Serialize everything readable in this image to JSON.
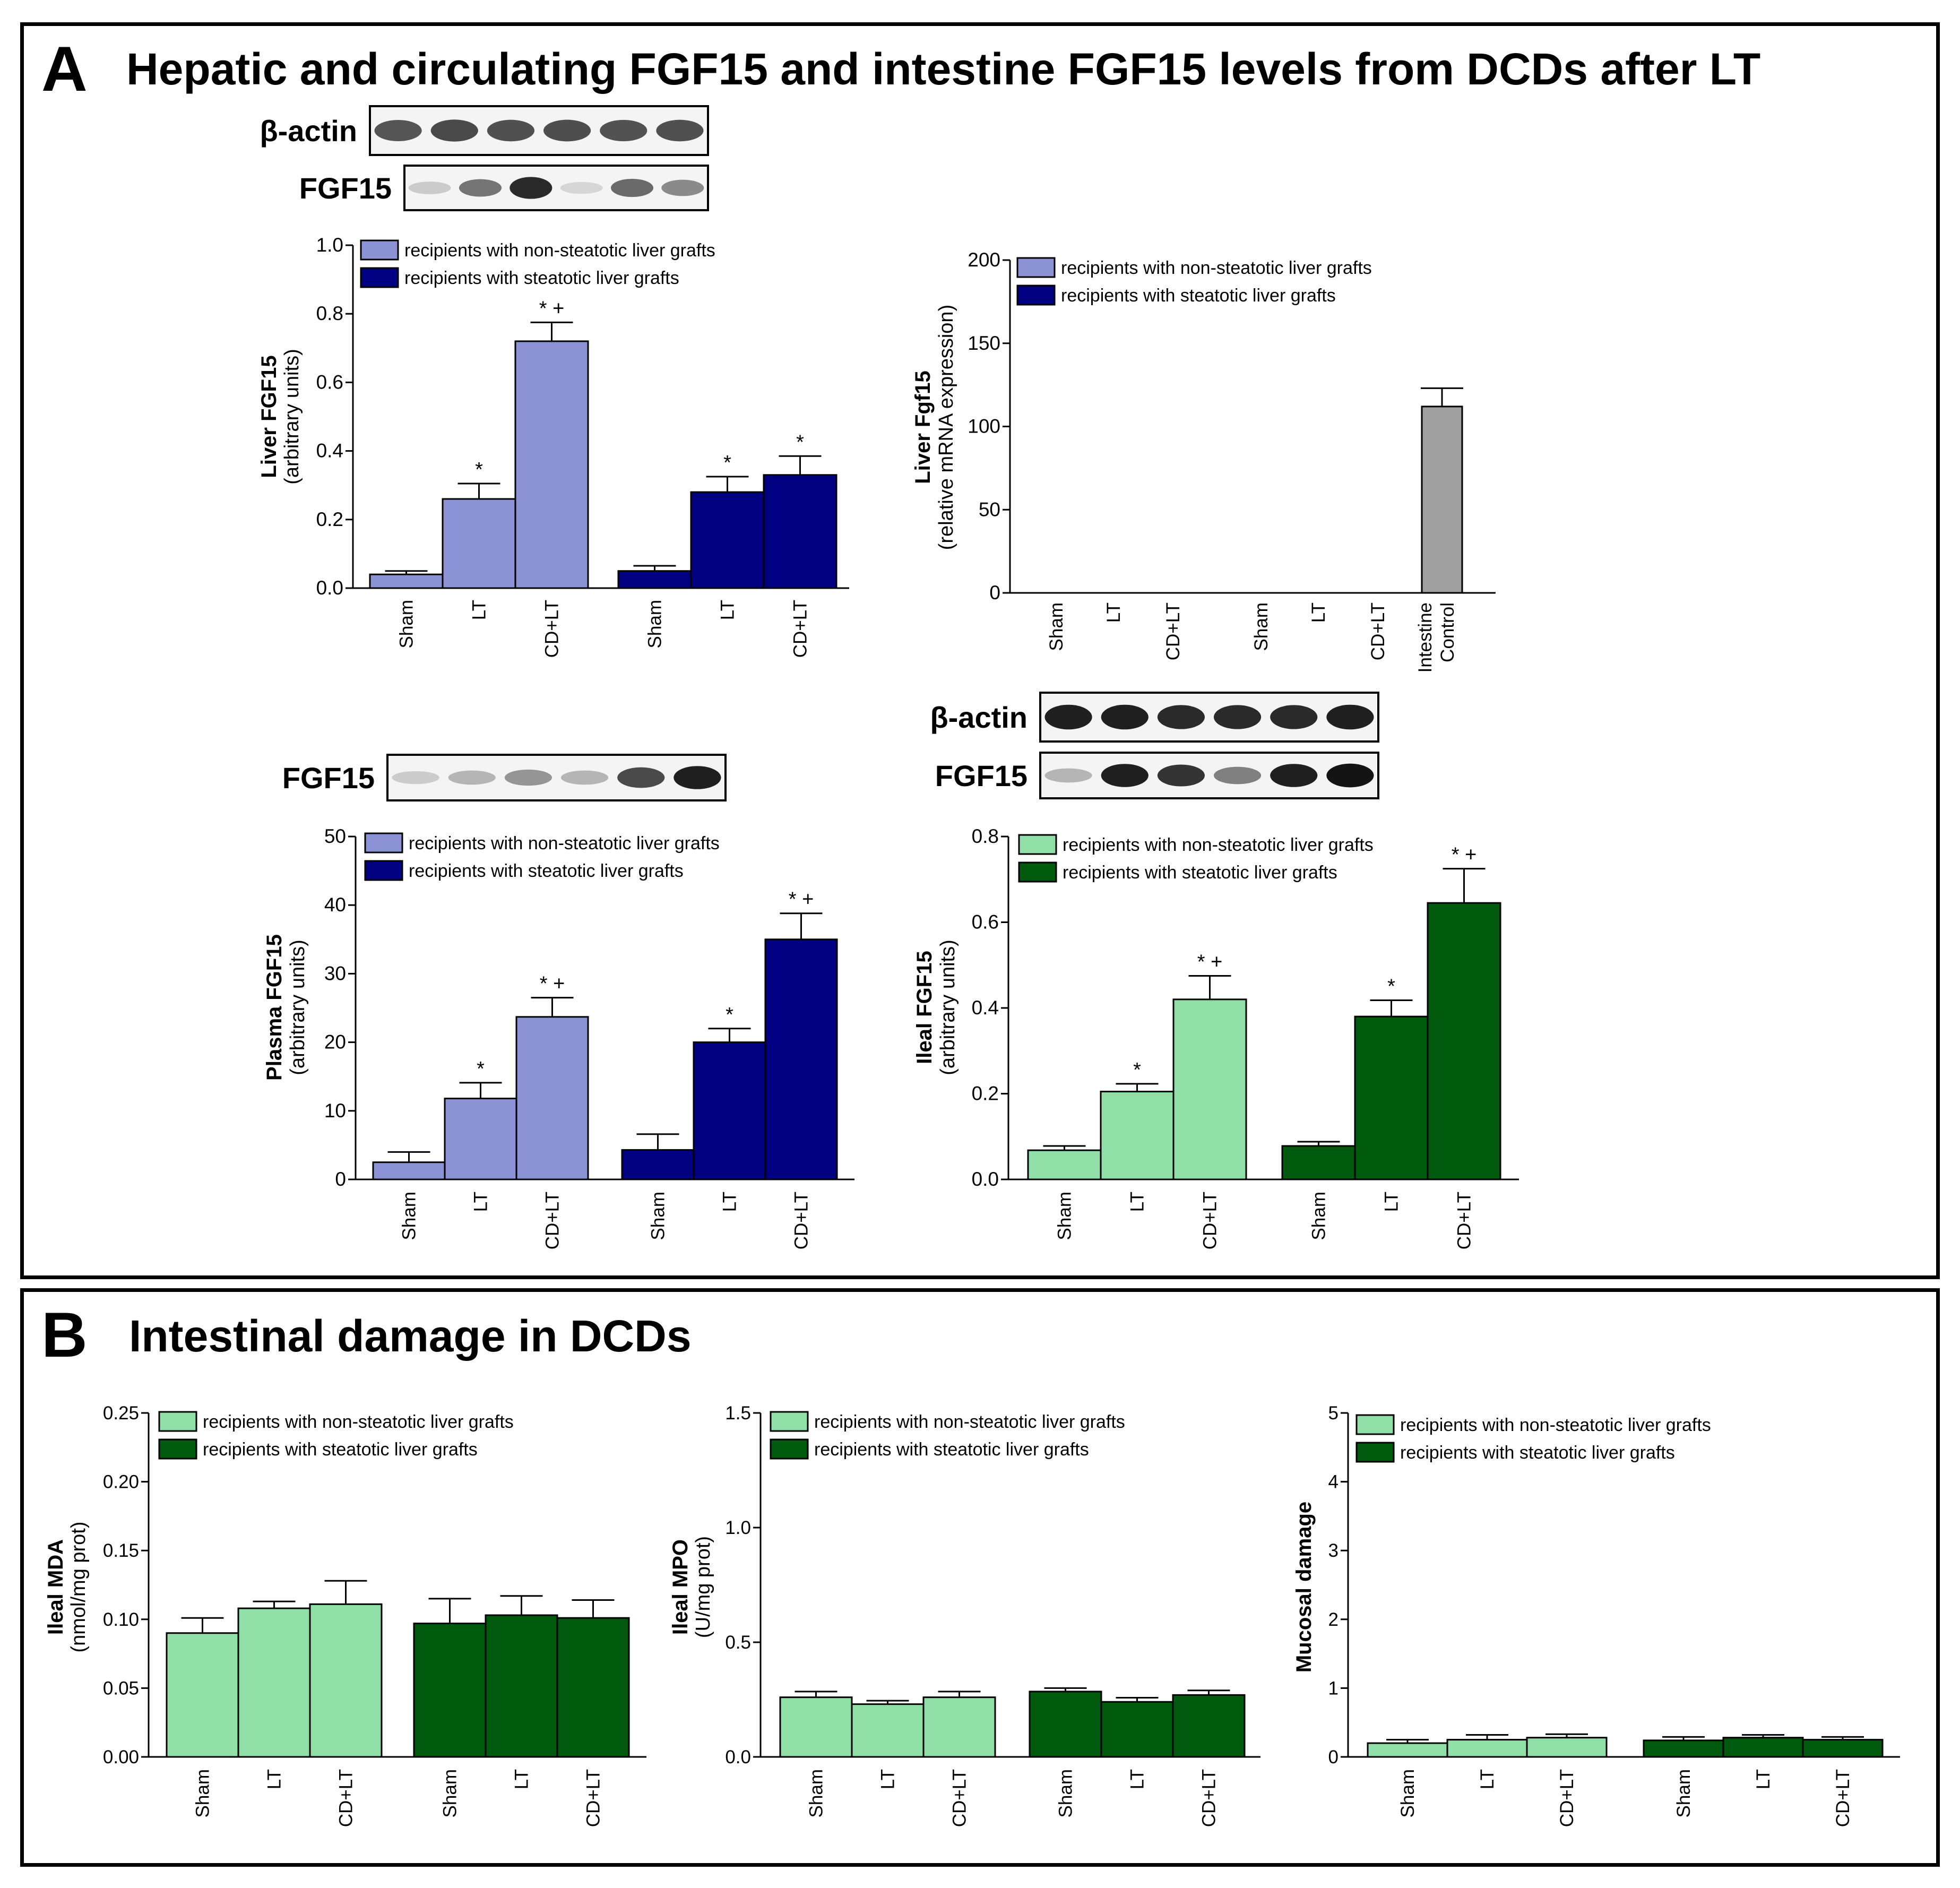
{
  "panel_a": {
    "label": "A",
    "title": "Hepatic and circulating FGF15 and intestine FGF15 levels from DCDs after LT"
  },
  "panel_b": {
    "label": "B",
    "title": "Intestinal damage in DCDs"
  },
  "blots": [
    {
      "id": "liver",
      "rows": [
        {
          "label": "β-actin"
        },
        {
          "label": "FGF15"
        }
      ]
    },
    {
      "id": "plasma",
      "rows": [
        {
          "label": "FGF15"
        }
      ]
    },
    {
      "id": "ileal",
      "rows": [
        {
          "label": "β-actin"
        },
        {
          "label": "FGF15"
        }
      ]
    }
  ],
  "colors": {
    "light_blue": "#8b93d4",
    "dark_blue": "#000080",
    "light_green": "#90dfa6",
    "dark_green": "#005a0e",
    "gray": "#a0a0a0"
  },
  "chart_data": [
    {
      "id": "liver-fgf15",
      "type": "bar",
      "ylabel_main": "Liver FGF15",
      "ylabel_sub": "(arbitrary units)",
      "ylim": [
        0,
        1.0
      ],
      "ticks": [
        "0.0",
        "0.2",
        "0.4",
        "0.6",
        "0.8",
        "1.0"
      ],
      "legend": [
        "recipients with non-steatotic liver grafts",
        "recipients with steatotic liver grafts"
      ],
      "categories": [
        "Sham",
        "LT",
        "CD+LT",
        "Sham",
        "LT",
        "CD+LT"
      ],
      "values": [
        0.04,
        0.26,
        0.72,
        0.05,
        0.28,
        0.33
      ],
      "errors": [
        0.01,
        0.045,
        0.055,
        0.015,
        0.045,
        0.055
      ],
      "marks": [
        "",
        "*",
        "* +",
        "",
        "*",
        "*"
      ]
    },
    {
      "id": "liver-fgf15-mrna",
      "type": "bar",
      "ylabel_main": "Liver Fgf15",
      "ylabel_sub": "(relative mRNA expression)",
      "ylim": [
        0,
        200
      ],
      "ticks": [
        "0",
        "50",
        "100",
        "150",
        "200"
      ],
      "legend": [
        "recipients with non-steatotic liver grafts",
        "recipients with steatotic liver grafts"
      ],
      "categories": [
        "Sham",
        "LT",
        "CD+LT",
        "Sham",
        "LT",
        "CD+LT",
        "Intestine Control"
      ],
      "values": [
        0,
        0,
        0,
        0,
        0,
        0,
        112
      ],
      "errors": [
        0,
        0,
        0,
        0,
        0,
        0,
        11
      ],
      "marks": [
        "",
        "",
        "",
        "",
        "",
        "",
        ""
      ]
    },
    {
      "id": "plasma-fgf15",
      "type": "bar",
      "ylabel_main": "Plasma FGF15",
      "ylabel_sub": "(arbitrary units)",
      "ylim": [
        0,
        50
      ],
      "ticks": [
        "0",
        "10",
        "20",
        "30",
        "40",
        "50"
      ],
      "legend": [
        "recipients with non-steatotic liver grafts",
        "recipients with steatotic liver grafts"
      ],
      "categories": [
        "Sham",
        "LT",
        "CD+LT",
        "Sham",
        "LT",
        "CD+LT"
      ],
      "values": [
        2.5,
        11.8,
        23.7,
        4.3,
        20.0,
        35.0
      ],
      "errors": [
        1.5,
        2.3,
        2.8,
        2.3,
        2.0,
        3.8
      ],
      "marks": [
        "",
        "*",
        "* +",
        "",
        "*",
        "* +"
      ]
    },
    {
      "id": "ileal-fgf15",
      "type": "bar",
      "ylabel_main": "Ileal FGF15",
      "ylabel_sub": "(arbitrary units)",
      "ylim": [
        0,
        0.8
      ],
      "ticks": [
        "0.0",
        "0.2",
        "0.4",
        "0.6",
        "0.8"
      ],
      "legend": [
        "recipients with non-steatotic liver grafts",
        "recipients with steatotic liver grafts"
      ],
      "categories": [
        "Sham",
        "LT",
        "CD+LT",
        "Sham",
        "LT",
        "CD+LT"
      ],
      "values": [
        0.068,
        0.205,
        0.42,
        0.078,
        0.38,
        0.645
      ],
      "errors": [
        0.01,
        0.018,
        0.055,
        0.01,
        0.038,
        0.08
      ],
      "marks": [
        "",
        "*",
        "* +",
        "",
        "*",
        "* +"
      ]
    },
    {
      "id": "ileal-mda",
      "type": "bar",
      "ylabel_main": "Ileal MDA",
      "ylabel_sub": "(nmol/mg prot)",
      "ylim": [
        0,
        0.25
      ],
      "ticks": [
        "0.00",
        "0.05",
        "0.10",
        "0.15",
        "0.20",
        "0.25"
      ],
      "legend": [
        "recipients with non-steatotic liver grafts",
        "recipients with steatotic liver grafts"
      ],
      "categories": [
        "Sham",
        "LT",
        "CD+LT",
        "Sham",
        "LT",
        "CD+LT"
      ],
      "values": [
        0.09,
        0.108,
        0.111,
        0.097,
        0.103,
        0.101
      ],
      "errors": [
        0.011,
        0.005,
        0.017,
        0.018,
        0.014,
        0.013
      ],
      "marks": [
        "",
        "",
        "",
        "",
        "",
        ""
      ]
    },
    {
      "id": "ileal-mpo",
      "type": "bar",
      "ylabel_main": "Ileal MPO",
      "ylabel_sub": "(U/mg prot)",
      "ylim": [
        0,
        1.5
      ],
      "ticks": [
        "0.0",
        "0.5",
        "1.0",
        "1.5"
      ],
      "legend": [
        "recipients with non-steatotic liver grafts",
        "recipients with steatotic liver grafts"
      ],
      "categories": [
        "Sham",
        "LT",
        "CD+LT",
        "Sham",
        "LT",
        "CD+LT"
      ],
      "values": [
        0.26,
        0.23,
        0.26,
        0.285,
        0.24,
        0.27
      ],
      "errors": [
        0.025,
        0.015,
        0.025,
        0.015,
        0.018,
        0.02
      ],
      "marks": [
        "",
        "",
        "",
        "",
        "",
        ""
      ]
    },
    {
      "id": "mucosal-damage",
      "type": "bar",
      "ylabel_main": "Mucosal damage",
      "ylabel_sub": "",
      "ylim": [
        0,
        5
      ],
      "ticks": [
        "0",
        "1",
        "2",
        "3",
        "4",
        "5"
      ],
      "legend": [
        "recipients with non-steatotic liver grafts",
        "recipients with steatotic liver grafts"
      ],
      "categories": [
        "Sham",
        "LT",
        "CD+LT",
        "Sham",
        "LT",
        "CD+LT"
      ],
      "values": [
        0.2,
        0.25,
        0.28,
        0.24,
        0.28,
        0.25
      ],
      "errors": [
        0.05,
        0.07,
        0.05,
        0.05,
        0.04,
        0.04
      ],
      "marks": [
        "",
        "",
        "",
        "",
        "",
        ""
      ]
    }
  ]
}
